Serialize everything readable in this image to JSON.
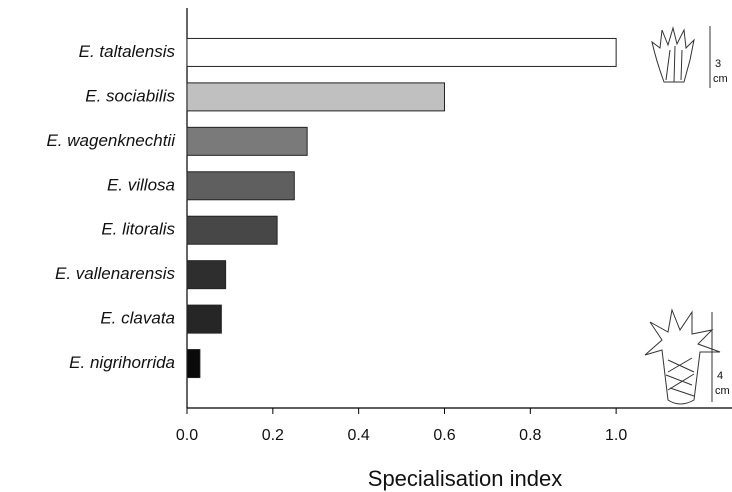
{
  "chart_data": {
    "type": "barh",
    "x_label": "Specialisation index",
    "categories": [
      "E. taltalensis",
      "E. sociabilis",
      "E. wagenknechtii",
      "E. villosa",
      "E. litoralis",
      "E. vallenarensis",
      "E. clavata",
      "E. nigrihorrida"
    ],
    "values": [
      1.0,
      0.6,
      0.28,
      0.25,
      0.21,
      0.09,
      0.08,
      0.03
    ],
    "colors": [
      "#ffffff",
      "#c0c0c0",
      "#7a7a7a",
      "#5f5f5f",
      "#474747",
      "#2e2e2e",
      "#262626",
      "#0a0a0a"
    ],
    "xlim": [
      0,
      1.27
    ],
    "xticks": [
      {
        "value": 0,
        "label": "0.0"
      },
      0.2,
      0.4,
      0.6,
      0.8,
      {
        "value": 1,
        "label": "1.0"
      }
    ],
    "annotations": [
      "3",
      "cm",
      "4",
      "cm"
    ]
  }
}
